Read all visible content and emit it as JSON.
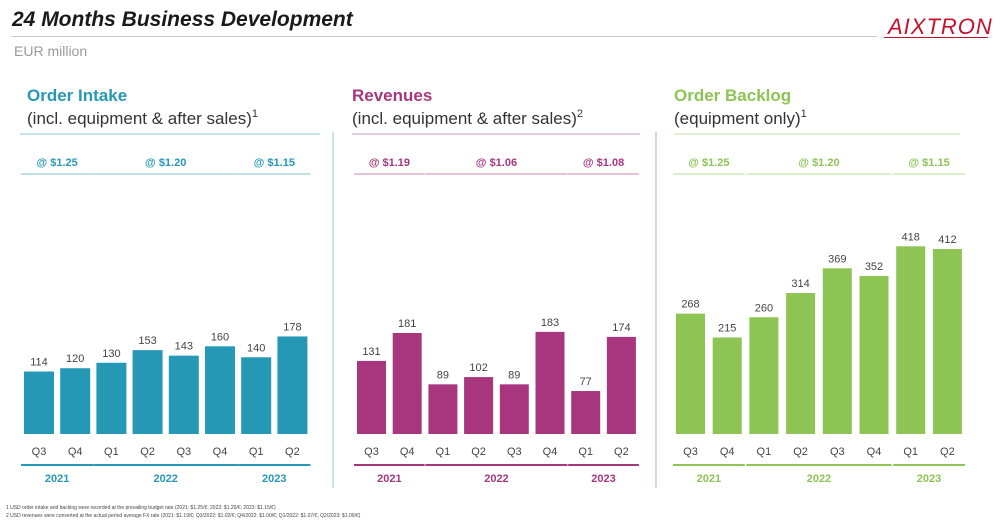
{
  "header": {
    "title": "24 Months Business Development",
    "subtitle": "EUR million",
    "logo_text": "AIXTRON"
  },
  "footnotes": [
    "1 USD order intake and backlog were recorded at the prevailing budget rate (2021: $1.25/€; 2022: $1.20/€; 2023: $1.15/€)",
    "2 USD revenues were converted at the actual period average FX rate (2021: $1.19/€; Q3/2022: $1.02/€; Q4/2022: $1.00/€; Q1/2022: $1.07/€; Q2/2023: $1.09/€)"
  ],
  "colors": {
    "order_intake": "#2598b6",
    "revenues": "#a8367f",
    "order_backlog": "#8dc454"
  },
  "chart_data": [
    {
      "type": "bar",
      "title": "Order Intake",
      "subtitle": "(incl. equipment & after sales)",
      "footnote_ref": "1",
      "categories": [
        "Q3",
        "Q4",
        "Q1",
        "Q2",
        "Q3",
        "Q4",
        "Q1",
        "Q2"
      ],
      "values": [
        114,
        120,
        130,
        153,
        143,
        160,
        140,
        178
      ],
      "years": [
        {
          "label": "2021",
          "start": 0,
          "end": 1
        },
        {
          "label": "2022",
          "start": 2,
          "end": 5
        },
        {
          "label": "2023",
          "start": 6,
          "end": 7
        }
      ],
      "rates": [
        {
          "label": "@ $1.25",
          "start": 0,
          "end": 1
        },
        {
          "label": "@ $1.20",
          "start": 2,
          "end": 5
        },
        {
          "label": "@ $1.15",
          "start": 6,
          "end": 7
        }
      ],
      "color": "#2598b6"
    },
    {
      "type": "bar",
      "title": "Revenues",
      "subtitle": "(incl. equipment & after sales)",
      "footnote_ref": "2",
      "categories": [
        "Q3",
        "Q4",
        "Q1",
        "Q2",
        "Q3",
        "Q4",
        "Q1",
        "Q2"
      ],
      "values": [
        131,
        181,
        89,
        102,
        89,
        183,
        77,
        174
      ],
      "years": [
        {
          "label": "2021",
          "start": 0,
          "end": 1
        },
        {
          "label": "2022",
          "start": 2,
          "end": 5
        },
        {
          "label": "2023",
          "start": 6,
          "end": 7
        }
      ],
      "rates": [
        {
          "label": "@ $1.19",
          "start": 0,
          "end": 1
        },
        {
          "label": "@ $1.06",
          "start": 2,
          "end": 5
        },
        {
          "label": "@ $1.08",
          "start": 6,
          "end": 7
        }
      ],
      "color": "#a8367f"
    },
    {
      "type": "bar",
      "title": "Order Backlog",
      "subtitle": "(equipment only)",
      "footnote_ref": "1",
      "categories": [
        "Q3",
        "Q4",
        "Q1",
        "Q2",
        "Q3",
        "Q4",
        "Q1",
        "Q2"
      ],
      "values": [
        268,
        215,
        260,
        314,
        369,
        352,
        418,
        412
      ],
      "years": [
        {
          "label": "2021",
          "start": 0,
          "end": 1
        },
        {
          "label": "2022",
          "start": 2,
          "end": 5
        },
        {
          "label": "2023",
          "start": 6,
          "end": 7
        }
      ],
      "rates": [
        {
          "label": "@ $1.25",
          "start": 0,
          "end": 1
        },
        {
          "label": "@ $1.20",
          "start": 2,
          "end": 5
        },
        {
          "label": "@ $1.15",
          "start": 6,
          "end": 7
        }
      ],
      "color": "#8dc454"
    }
  ]
}
